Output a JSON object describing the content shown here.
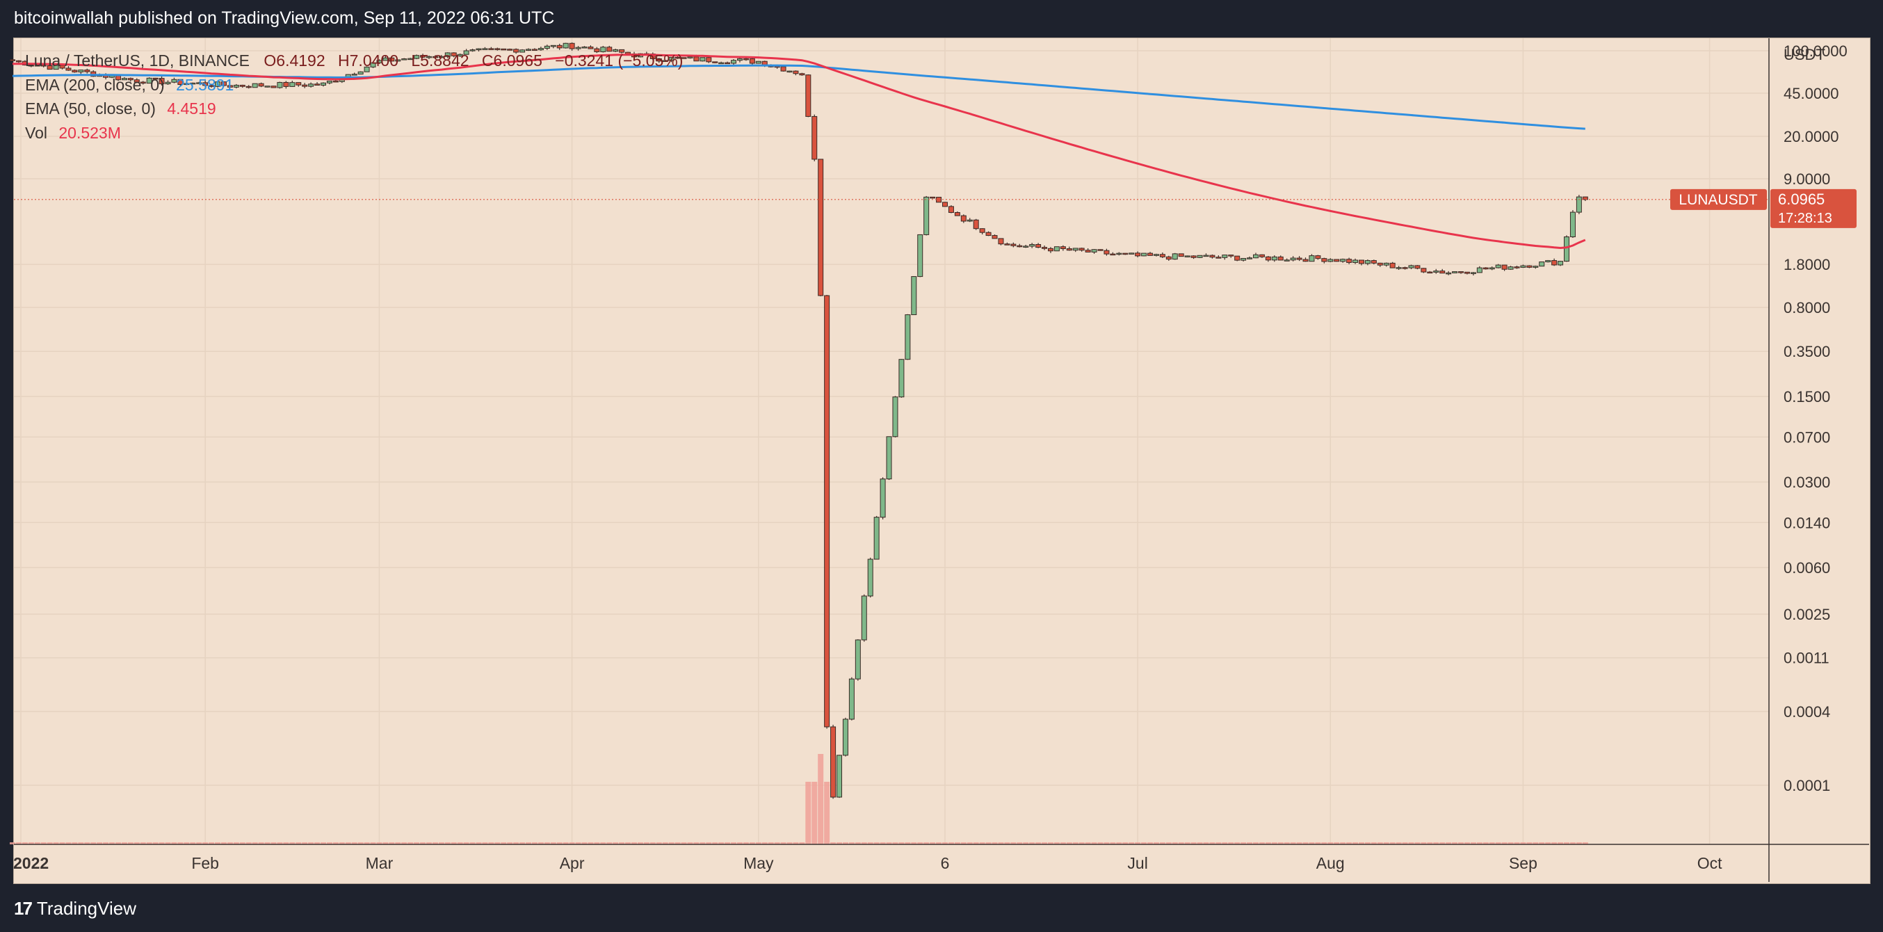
{
  "header": {
    "publish_text": "bitcoinwallah published on TradingView.com, Sep 11, 2022 06:31 UTC"
  },
  "legend": {
    "symbol": "Luna / TetherUS, 1D, BINANCE",
    "open": "O6.4192",
    "high": "H7.0400",
    "low": "L5.8842",
    "close": "C6.0965",
    "change": "−0.3241 (−5.05%)",
    "ema200_label": "EMA (200, close, 0)",
    "ema200_value": "25.5891",
    "ema50_label": "EMA (50, close, 0)",
    "ema50_value": "4.4519",
    "vol_label": "Vol",
    "vol_value": "20.523M"
  },
  "price_tag": {
    "symbol": "LUNAUSDT",
    "price": "6.0965",
    "countdown": "17:28:13"
  },
  "footer": {
    "logo_mark": "17",
    "brand": "TradingView"
  },
  "colors": {
    "background": "#f2e0cf",
    "up_candle": "#7fb88a",
    "down_candle": "#d9533e",
    "ema200": "#2f8fe0",
    "ema50": "#e8344c",
    "price_tag": "#d9533e",
    "volume": "#f0a098"
  },
  "chart_data": {
    "type": "candlestick",
    "scale": "log",
    "y_unit": "USDT",
    "y_ticks": [
      "100.0000",
      "45.0000",
      "20.0000",
      "9.0000",
      "1.8000",
      "0.8000",
      "0.3500",
      "0.1500",
      "0.0700",
      "0.0300",
      "0.0140",
      "0.0060",
      "0.0025",
      "0.0011",
      "0.0004",
      "0.0001"
    ],
    "x_ticks": [
      "2022",
      "Feb",
      "Mar",
      "Apr",
      "May",
      "6",
      "Jul",
      "Aug",
      "Sep",
      "Oct"
    ],
    "last_price": 6.0965,
    "key_points": [
      {
        "date": "2022-01-01",
        "price": 83
      },
      {
        "date": "2022-01-20",
        "price": 58
      },
      {
        "date": "2022-02-05",
        "price": 52
      },
      {
        "date": "2022-02-20",
        "price": 53
      },
      {
        "date": "2022-03-01",
        "price": 82
      },
      {
        "date": "2022-03-15",
        "price": 97
      },
      {
        "date": "2022-04-01",
        "price": 110
      },
      {
        "date": "2022-04-15",
        "price": 87
      },
      {
        "date": "2022-05-01",
        "price": 82
      },
      {
        "date": "2022-05-08",
        "price": 65
      },
      {
        "date": "2022-05-10",
        "price": 13
      },
      {
        "date": "2022-05-11",
        "price": 1.0
      },
      {
        "date": "2022-05-12",
        "price": 0.0003
      },
      {
        "date": "2022-05-13",
        "price": 8e-05
      },
      {
        "date": "2022-05-28",
        "price": 6.5
      },
      {
        "date": "2022-06-10",
        "price": 2.6
      },
      {
        "date": "2022-07-01",
        "price": 2.1
      },
      {
        "date": "2022-08-01",
        "price": 2.0
      },
      {
        "date": "2022-08-20",
        "price": 1.55
      },
      {
        "date": "2022-09-07",
        "price": 1.9
      },
      {
        "date": "2022-09-09",
        "price": 4.8
      },
      {
        "date": "2022-09-10",
        "price": 6.4
      },
      {
        "date": "2022-09-11",
        "price": 6.0965
      }
    ],
    "series": [
      {
        "name": "EMA (200, close, 0)",
        "last_value": 25.5891
      },
      {
        "name": "EMA (50, close, 0)",
        "last_value": 4.4519
      }
    ]
  }
}
